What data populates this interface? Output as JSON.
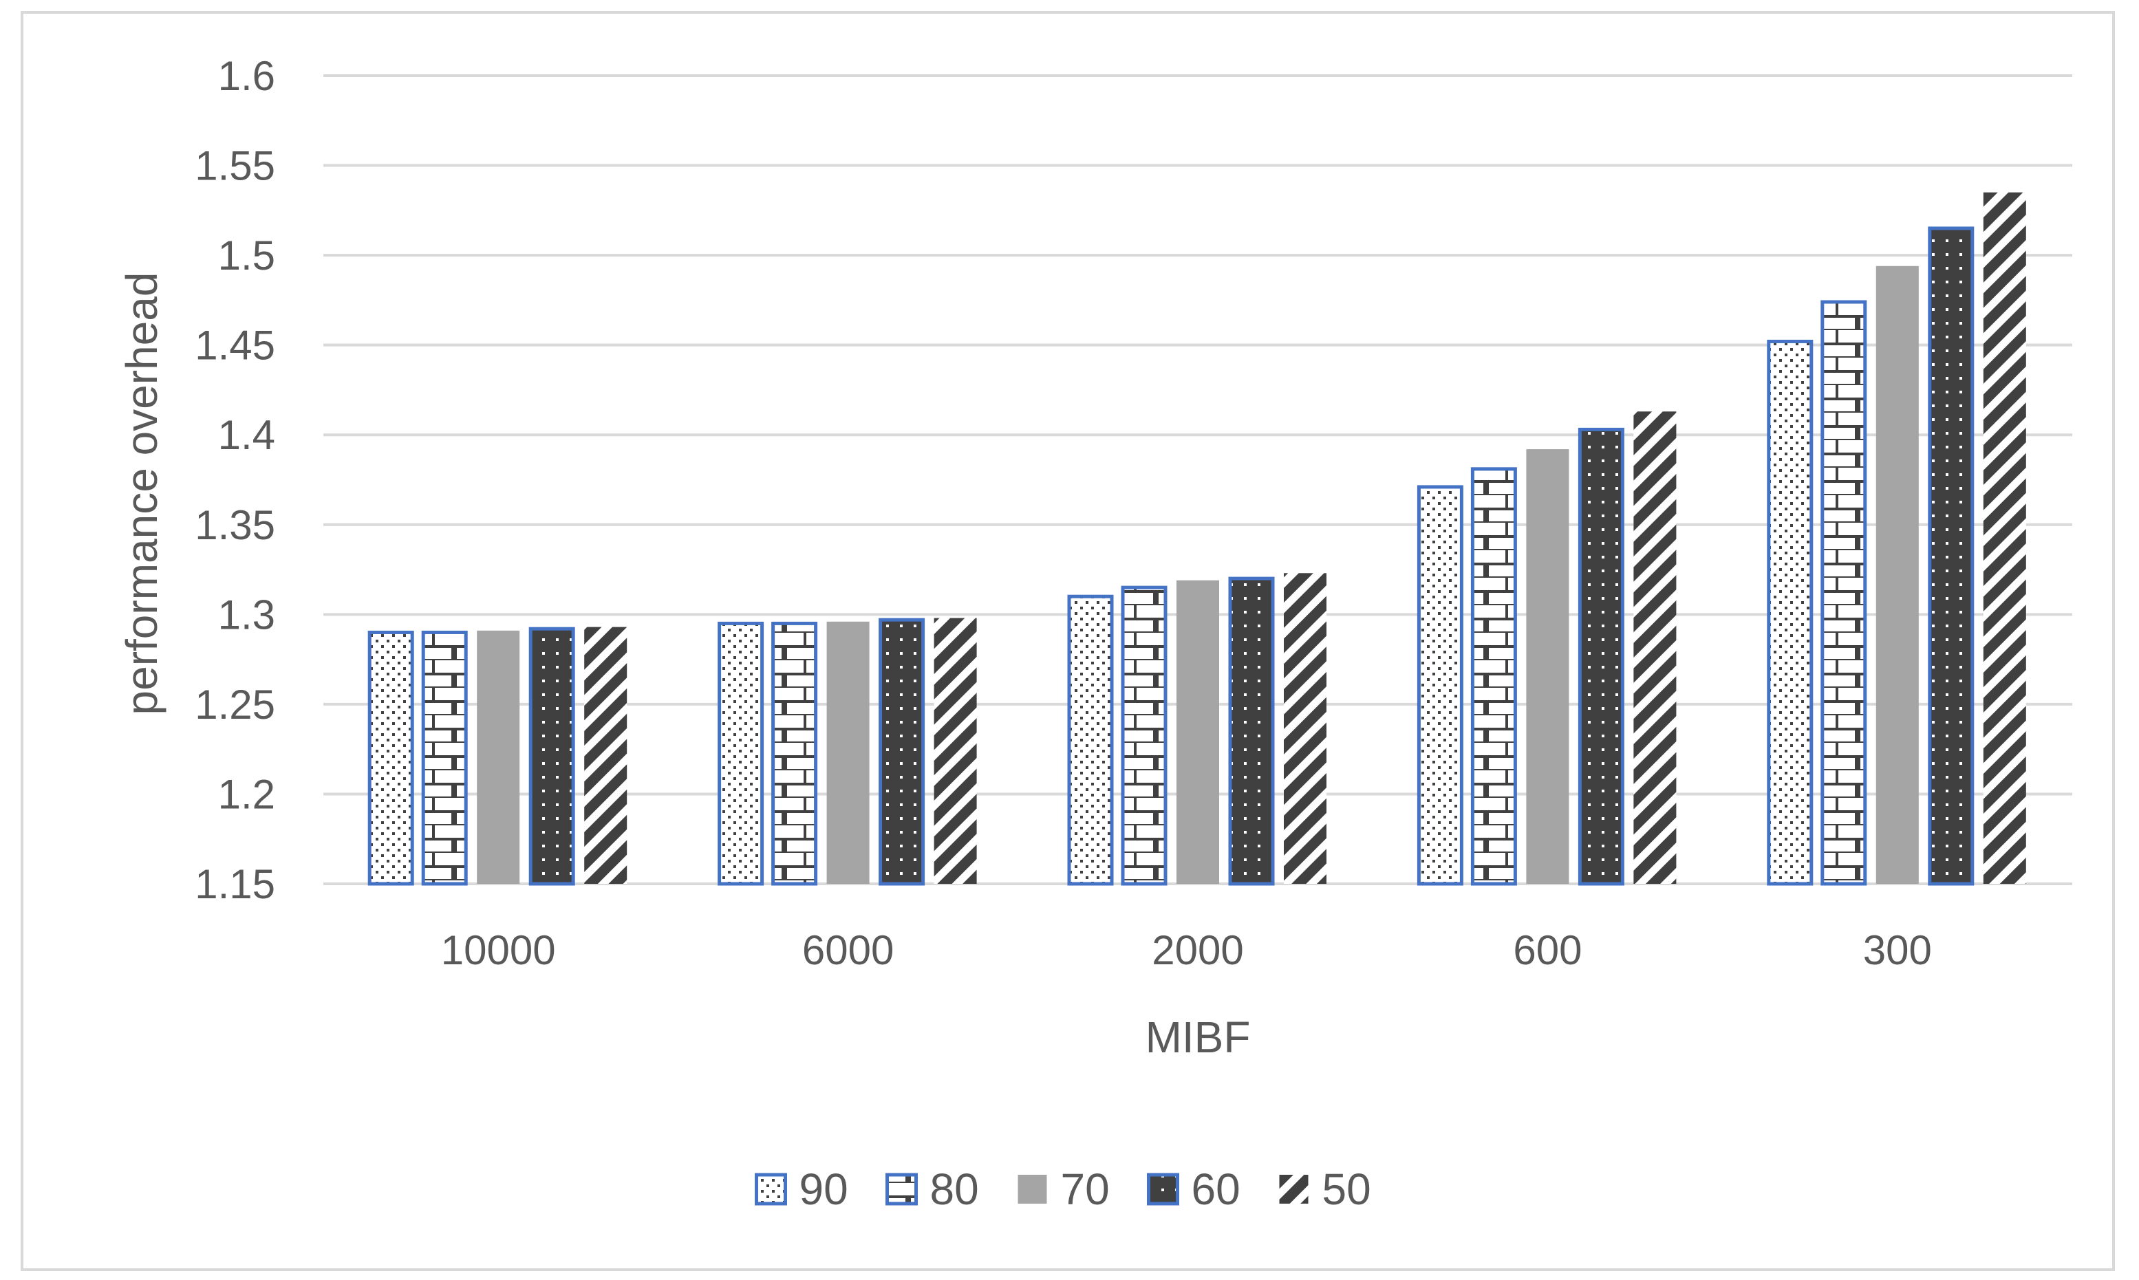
{
  "chart_data": {
    "type": "bar",
    "title": "",
    "xlabel": "MIBF",
    "ylabel": "performance overhead",
    "categories": [
      "10000",
      "6000",
      "2000",
      "600",
      "300"
    ],
    "series": [
      {
        "name": "90",
        "values": [
          1.29,
          1.295,
          1.31,
          1.371,
          1.452
        ],
        "pattern": "dots",
        "color": "#404040",
        "outline": "#4472c4"
      },
      {
        "name": "80",
        "values": [
          1.29,
          1.295,
          1.315,
          1.381,
          1.474
        ],
        "pattern": "bricks",
        "color": "#404040",
        "outline": "#4472c4"
      },
      {
        "name": "70",
        "values": [
          1.291,
          1.296,
          1.319,
          1.392,
          1.494
        ],
        "pattern": "solid",
        "color": "#a5a5a5",
        "outline": ""
      },
      {
        "name": "60",
        "values": [
          1.292,
          1.297,
          1.32,
          1.403,
          1.515
        ],
        "pattern": "dark-dots",
        "color": "#404040",
        "outline": "#4472c4"
      },
      {
        "name": "50",
        "values": [
          1.293,
          1.298,
          1.323,
          1.413,
          1.535
        ],
        "pattern": "diagonal",
        "color": "#404040",
        "outline": ""
      }
    ],
    "ylim": [
      1.15,
      1.6
    ],
    "yticks": [
      "1.15",
      "1.2",
      "1.25",
      "1.3",
      "1.35",
      "1.4",
      "1.45",
      "1.5",
      "1.55",
      "1.6"
    ],
    "grid": true,
    "legend_position": "bottom"
  }
}
